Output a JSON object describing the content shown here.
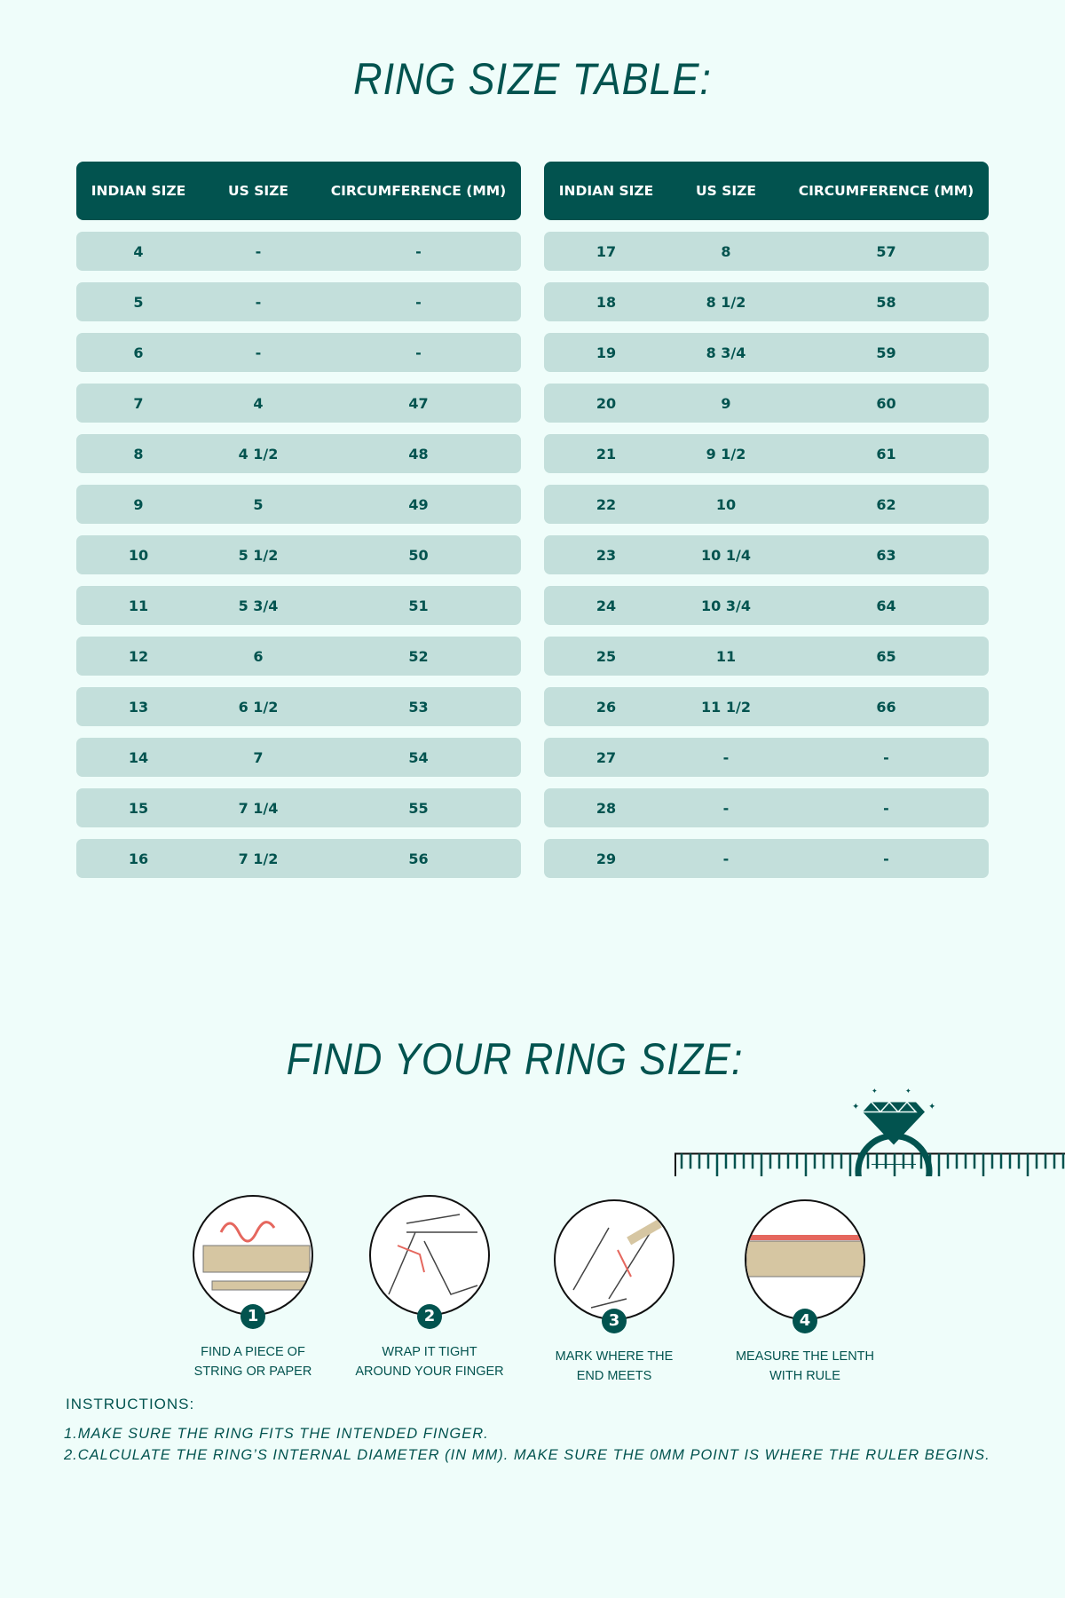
{
  "title": "RING SIZE TABLE:",
  "headers": {
    "indian": "INDIAN SIZE",
    "us": "US SIZE",
    "circ": "CIRCUMFERENCE (MM)"
  },
  "left_rows": [
    [
      "4",
      "-",
      "-"
    ],
    [
      "5",
      "-",
      "-"
    ],
    [
      "6",
      "-",
      "-"
    ],
    [
      "7",
      "4",
      "47"
    ],
    [
      "8",
      "4 1/2",
      "48"
    ],
    [
      "9",
      "5",
      "49"
    ],
    [
      "10",
      "5 1/2",
      "50"
    ],
    [
      "11",
      "5 3/4",
      "51"
    ],
    [
      "12",
      "6",
      "52"
    ],
    [
      "13",
      "6 1/2",
      "53"
    ],
    [
      "14",
      "7",
      "54"
    ],
    [
      "15",
      "7 1/4",
      "55"
    ],
    [
      "16",
      "7 1/2",
      "56"
    ]
  ],
  "right_rows": [
    [
      "17",
      "8",
      "57"
    ],
    [
      "18",
      "8 1/2",
      "58"
    ],
    [
      "19",
      "8 3/4",
      "59"
    ],
    [
      "20",
      "9",
      "60"
    ],
    [
      "21",
      "9 1/2",
      "61"
    ],
    [
      "22",
      "10",
      "62"
    ],
    [
      "23",
      "10 1/4",
      "63"
    ],
    [
      "24",
      "10 3/4",
      "64"
    ],
    [
      "25",
      "11",
      "65"
    ],
    [
      "26",
      "11 1/2",
      "66"
    ],
    [
      "27",
      "-",
      "-"
    ],
    [
      "28",
      "-",
      "-"
    ],
    [
      "29",
      "-",
      "-"
    ]
  ],
  "find_title": "FIND YOUR RING SIZE:",
  "steps": [
    {
      "num": "1",
      "line1": "FIND A PIECE OF",
      "line2": "STRING OR PAPER",
      "icon": "string-ruler-pencil-icon"
    },
    {
      "num": "2",
      "line1": "WRAP IT TIGHT",
      "line2": "AROUND YOUR FINGER",
      "icon": "wrap-finger-icon"
    },
    {
      "num": "3",
      "line1": "MARK WHERE THE",
      "line2": "END MEETS",
      "icon": "mark-pencil-icon"
    },
    {
      "num": "4",
      "line1": "MEASURE THE LENTH",
      "line2": "WITH RULE",
      "icon": "measure-ruler-icon"
    }
  ],
  "instructions": {
    "heading": "INSTRUCTIONS:",
    "items": [
      "1.MAKE SURE THE RING FITS THE INTENDED FINGER.",
      "2.CALCULATE THE RING’S INTERNAL DIAMETER (IN MM). MAKE SURE THE 0MM POINT IS WHERE THE RULER BEGINS."
    ]
  },
  "colors": {
    "primary": "#02534f",
    "row": "#c3dfdb",
    "background": "#effdfa",
    "string": "#e5675e"
  }
}
